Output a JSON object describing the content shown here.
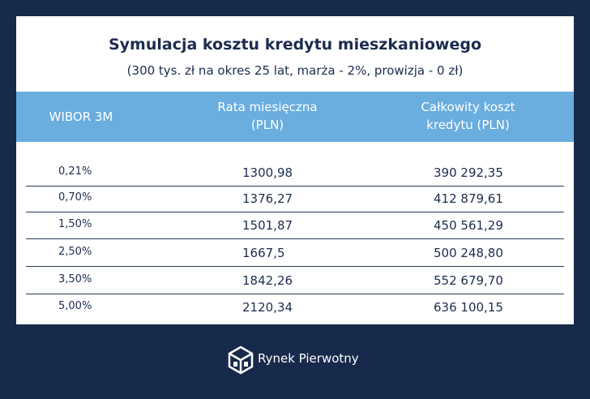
{
  "header": {
    "title": "Symulacja kosztu kredytu mieszkaniowego",
    "subtitle": "(300 tys. zł na okres 25 lat, marża - 2%, prowizja - 0 zł)"
  },
  "table": {
    "columns": [
      "WIBOR 3M",
      "Rata miesięczna (PLN)",
      "Całkowity koszt kredytu (PLN)"
    ],
    "rows": [
      [
        "0,21%",
        "1300,98",
        "390 292,35"
      ],
      [
        "0,70%",
        "1376,27",
        "412 879,61"
      ],
      [
        "1,50%",
        "1501,87",
        "450 561,29"
      ],
      [
        "2,50%",
        "1667,5",
        "500 248,80"
      ],
      [
        "3,50%",
        "1842,26",
        "552 679,70"
      ],
      [
        "5,00%",
        "2120,34",
        "636 100,15"
      ]
    ]
  },
  "footer": {
    "brand": "Rynek Pierwotny"
  }
}
